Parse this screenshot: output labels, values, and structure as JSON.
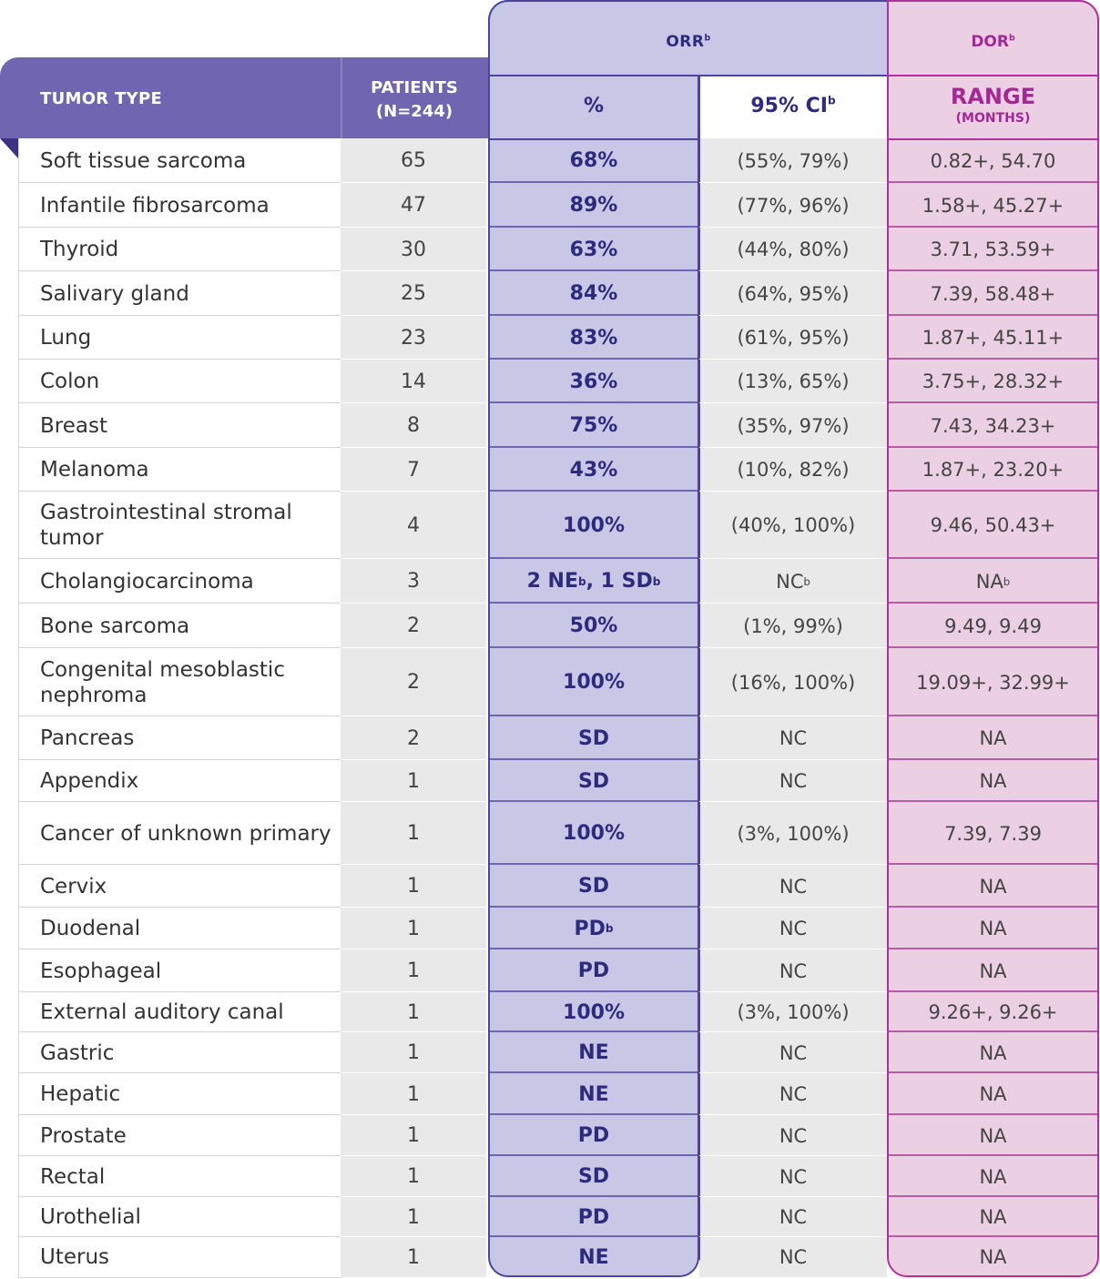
{
  "header": {
    "orr_group": "ORR",
    "orr_group_sup": "b",
    "dor_group": "DOR",
    "dor_group_sup": "b",
    "tumor_type": "TUMOR TYPE",
    "patients_line1": "PATIENTS",
    "patients_line2": "(N=244)",
    "percent": "%",
    "ci": "95% CI",
    "ci_sup": "b",
    "range": "RANGE",
    "range_sub": "(MONTHS)"
  },
  "colors": {
    "header_purple": "#6f65b0",
    "orr_fill": "#c9c7e6",
    "orr_border": "#4c459b",
    "dor_fill": "#ebcfe3",
    "dor_border": "#b2309a",
    "gray_fill": "#e9e9e9"
  },
  "rows": [
    {
      "tumor": "Soft tissue sarcoma",
      "patients": "65",
      "orr": "68%",
      "ci": "(55%, 79%)",
      "range": "0.82+, 54.70"
    },
    {
      "tumor": "Infantile fibrosarcoma",
      "patients": "47",
      "orr": "89%",
      "ci": "(77%, 96%)",
      "range": "1.58+, 45.27+"
    },
    {
      "tumor": "Thyroid",
      "patients": "30",
      "orr": "63%",
      "ci": "(44%, 80%)",
      "range": "3.71, 53.59+"
    },
    {
      "tumor": "Salivary gland",
      "patients": "25",
      "orr": "84%",
      "ci": "(64%, 95%)",
      "range": "7.39, 58.48+"
    },
    {
      "tumor": "Lung",
      "patients": "23",
      "orr": "83%",
      "ci": "(61%, 95%)",
      "range": "1.87+, 45.11+"
    },
    {
      "tumor": "Colon",
      "patients": "14",
      "orr": "36%",
      "ci": "(13%, 65%)",
      "range": "3.75+, 28.32+"
    },
    {
      "tumor": "Breast",
      "patients": "8",
      "orr": "75%",
      "ci": "(35%, 97%)",
      "range": "7.43, 34.23+"
    },
    {
      "tumor": "Melanoma",
      "patients": "7",
      "orr": "43%",
      "ci": "(10%, 82%)",
      "range": "1.87+, 23.20+"
    },
    {
      "tumor": "Gastrointestinal stromal tumor",
      "patients": "4",
      "orr": "100%",
      "ci": "(40%, 100%)",
      "range": "9.46, 50.43+"
    },
    {
      "tumor": "Cholangiocarcinoma",
      "patients": "3",
      "orr": "2 NE",
      "orr_sup": "b",
      "orr_tail": ", 1 SD",
      "orr_tail_sup": "b",
      "ci": "NC",
      "ci_sup": "b",
      "range": "NA",
      "range_sup": "b"
    },
    {
      "tumor": "Bone sarcoma",
      "patients": "2",
      "orr": "50%",
      "ci": "(1%, 99%)",
      "range": "9.49, 9.49"
    },
    {
      "tumor": "Congenital mesoblastic nephroma",
      "patients": "2",
      "orr": "100%",
      "ci": "(16%, 100%)",
      "range": "19.09+, 32.99+"
    },
    {
      "tumor": "Pancreas",
      "patients": "2",
      "orr": "SD",
      "ci": "NC",
      "range": "NA"
    },
    {
      "tumor": "Appendix",
      "patients": "1",
      "orr": "SD",
      "ci": "NC",
      "range": "NA"
    },
    {
      "tumor": "Cancer of unknown primary",
      "patients": "1",
      "orr": "100%",
      "ci": "(3%, 100%)",
      "range": "7.39, 7.39"
    },
    {
      "tumor": "Cervix",
      "patients": "1",
      "orr": "SD",
      "ci": "NC",
      "range": "NA"
    },
    {
      "tumor": "Duodenal",
      "patients": "1",
      "orr": "PD",
      "orr_sup": "b",
      "ci": "NC",
      "range": "NA"
    },
    {
      "tumor": "Esophageal",
      "patients": "1",
      "orr": "PD",
      "ci": "NC",
      "range": "NA"
    },
    {
      "tumor": "External auditory canal",
      "patients": "1",
      "orr": "100%",
      "ci": "(3%, 100%)",
      "range": "9.26+, 9.26+"
    },
    {
      "tumor": "Gastric",
      "patients": "1",
      "orr": "NE",
      "ci": "NC",
      "range": "NA"
    },
    {
      "tumor": "Hepatic",
      "patients": "1",
      "orr": "NE",
      "ci": "NC",
      "range": "NA"
    },
    {
      "tumor": "Prostate",
      "patients": "1",
      "orr": "PD",
      "ci": "NC",
      "range": "NA"
    },
    {
      "tumor": "Rectal",
      "patients": "1",
      "orr": "SD",
      "ci": "NC",
      "range": "NA"
    },
    {
      "tumor": "Urothelial",
      "patients": "1",
      "orr": "PD",
      "ci": "NC",
      "range": "NA"
    },
    {
      "tumor": "Uterus",
      "patients": "1",
      "orr": "NE",
      "ci": "NC",
      "range": "NA"
    }
  ]
}
